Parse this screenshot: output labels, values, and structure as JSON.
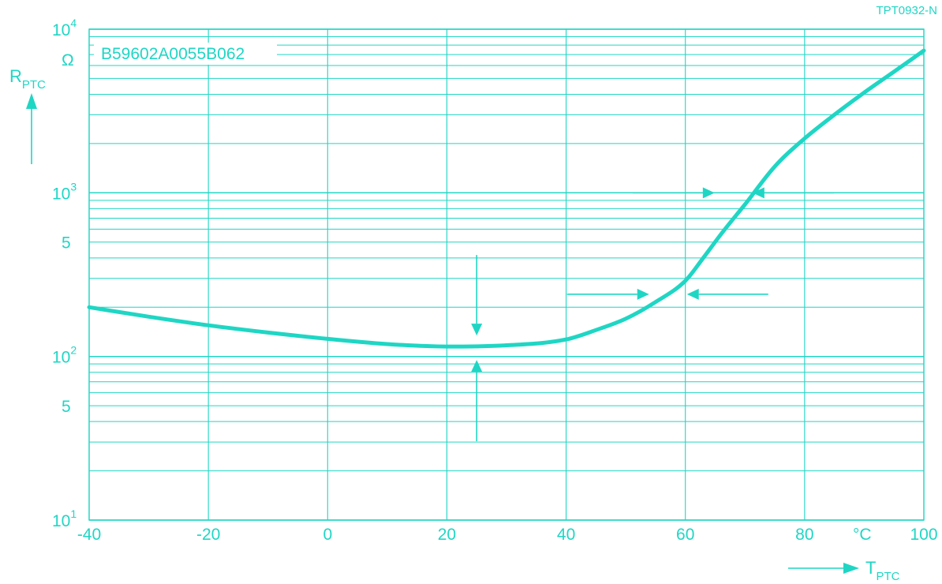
{
  "colors": {
    "accent": "#1fd6c4"
  },
  "chart_data": {
    "type": "line",
    "title": "",
    "code_label": "TPT0932-N",
    "part_number": "B59602A0055B062",
    "x_label_main": "T",
    "x_label_sub": "PTC",
    "x_unit": "°C",
    "y_label_main": "R",
    "y_label_sub": "PTC",
    "y_unit": "Ω",
    "x_scale": "linear",
    "y_scale": "log",
    "xlim": [
      -40,
      100
    ],
    "ylim": [
      10,
      10000
    ],
    "grid": true,
    "x_ticks": [
      {
        "value": -40,
        "label": "-40"
      },
      {
        "value": -20,
        "label": "-20"
      },
      {
        "value": 0,
        "label": "0"
      },
      {
        "value": 20,
        "label": "20"
      },
      {
        "value": 40,
        "label": "40"
      },
      {
        "value": 60,
        "label": "60"
      },
      {
        "value": 80,
        "label": "80"
      },
      {
        "value": 100,
        "label": "100"
      }
    ],
    "y_ticks": [
      {
        "value": 10,
        "base": "10",
        "exp": "1"
      },
      {
        "value": 50,
        "base": "5",
        "exp": ""
      },
      {
        "value": 100,
        "base": "10",
        "exp": "2"
      },
      {
        "value": 500,
        "base": "5",
        "exp": ""
      },
      {
        "value": 1000,
        "base": "10",
        "exp": "3"
      },
      {
        "value": 10000,
        "base": "10",
        "exp": "4"
      }
    ],
    "series": [
      {
        "x": [
          -40,
          -30,
          -20,
          -10,
          0,
          10,
          20,
          30,
          40,
          45,
          50,
          55,
          60,
          63,
          66,
          70,
          75,
          80,
          85,
          90,
          95,
          100
        ],
        "y": [
          200,
          175,
          155,
          140,
          128,
          119,
          115,
          117,
          127,
          145,
          170,
          215,
          290,
          400,
          560,
          850,
          1450,
          2150,
          3000,
          4100,
          5500,
          7400
        ]
      }
    ],
    "tolerance_markers": [
      {
        "type": "vertical",
        "x": 25,
        "y": 115
      },
      {
        "type": "horizontal",
        "x": 60,
        "y": 240
      },
      {
        "type": "horizontal",
        "x": 71,
        "y": 1000
      }
    ]
  }
}
